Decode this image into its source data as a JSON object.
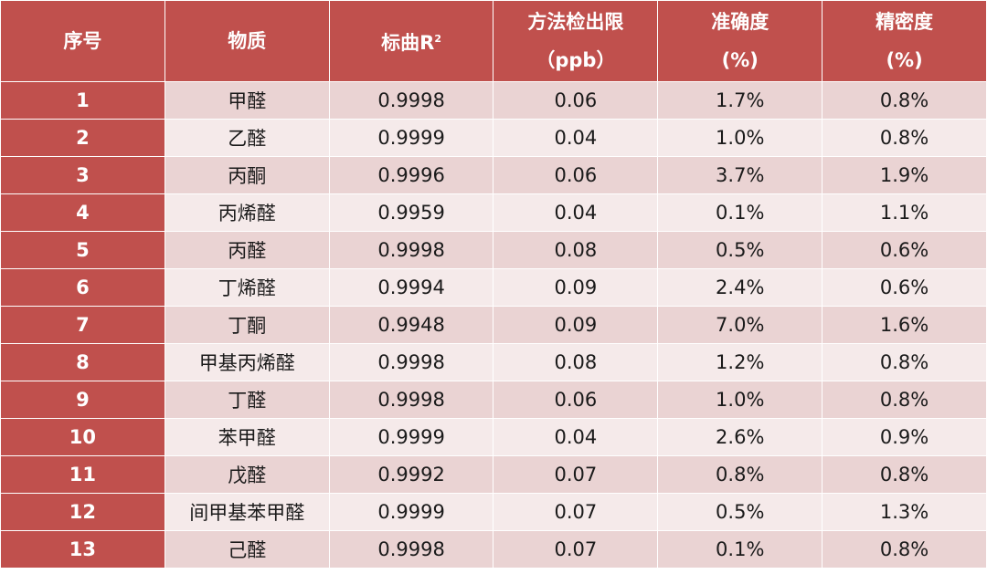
{
  "colors": {
    "header": "#c0504d",
    "row_odd": "#ead3d3",
    "row_even": "#f5eaea"
  },
  "headers": [
    {
      "line1": "序号",
      "line2": ""
    },
    {
      "line1": "物质",
      "line2": ""
    },
    {
      "line1": "标曲R",
      "sup": "2",
      "line2": ""
    },
    {
      "line1": "方法检出限",
      "line2": "（ppb）"
    },
    {
      "line1": "准确度",
      "line2": "(%)"
    },
    {
      "line1": "精密度",
      "line2": "(%)"
    }
  ],
  "rows": [
    [
      "1",
      "甲醛",
      "0.9998",
      "0.06",
      "1.7%",
      "0.8%"
    ],
    [
      "2",
      "乙醛",
      "0.9999",
      "0.04",
      "1.0%",
      "0.8%"
    ],
    [
      "3",
      "丙酮",
      "0.9996",
      "0.06",
      "3.7%",
      "1.9%"
    ],
    [
      "4",
      "丙烯醛",
      "0.9959",
      "0.04",
      "0.1%",
      "1.1%"
    ],
    [
      "5",
      "丙醛",
      "0.9998",
      "0.08",
      "0.5%",
      "0.6%"
    ],
    [
      "6",
      "丁烯醛",
      "0.9994",
      "0.09",
      "2.4%",
      "0.6%"
    ],
    [
      "7",
      "丁酮",
      "0.9948",
      "0.09",
      "7.0%",
      "1.6%"
    ],
    [
      "8",
      "甲基丙烯醛",
      "0.9998",
      "0.08",
      "1.2%",
      "0.8%"
    ],
    [
      "9",
      "丁醛",
      "0.9998",
      "0.06",
      "1.0%",
      "0.8%"
    ],
    [
      "10",
      "苯甲醛",
      "0.9999",
      "0.04",
      "2.6%",
      "0.9%"
    ],
    [
      "11",
      "戊醛",
      "0.9992",
      "0.07",
      "0.8%",
      "0.8%"
    ],
    [
      "12",
      "间甲基苯甲醛",
      "0.9999",
      "0.07",
      "0.5%",
      "1.3%"
    ],
    [
      "13",
      "己醛",
      "0.9998",
      "0.07",
      "0.1%",
      "0.8%"
    ]
  ]
}
